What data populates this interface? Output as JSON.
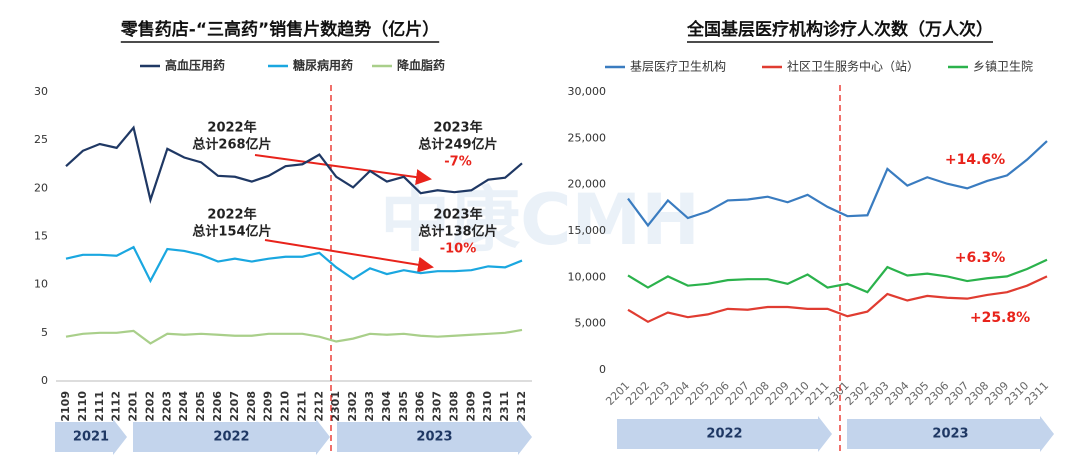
{
  "watermark": "中康CMH",
  "chart_data": [
    {
      "type": "line",
      "title": "零售药店-“三高药”销售片数趋势（亿片）",
      "categories": [
        "2109",
        "2110",
        "2111",
        "2112",
        "2201",
        "2202",
        "2203",
        "2204",
        "2205",
        "2206",
        "2207",
        "2208",
        "2209",
        "2210",
        "2211",
        "2212",
        "2301",
        "2302",
        "2303",
        "2304",
        "2305",
        "2306",
        "2307",
        "2308",
        "2309",
        "2310",
        "2311",
        "2312"
      ],
      "series": [
        {
          "name": "高血压用药",
          "color": "#1f3864",
          "values": [
            22.3,
            23.9,
            24.6,
            24.2,
            26.3,
            18.8,
            24.1,
            23.2,
            22.7,
            21.3,
            21.2,
            20.7,
            21.3,
            22.3,
            22.5,
            23.5,
            21.2,
            20.1,
            21.8,
            20.7,
            21.2,
            19.5,
            19.8,
            19.6,
            19.8,
            20.9,
            21.1,
            22.6
          ]
        },
        {
          "name": "糖尿病用药",
          "color": "#1aa7e0",
          "values": [
            12.7,
            13.1,
            13.1,
            13.0,
            13.9,
            10.4,
            13.7,
            13.5,
            13.1,
            12.4,
            12.7,
            12.4,
            12.7,
            12.9,
            12.9,
            13.3,
            11.8,
            10.6,
            11.7,
            11.1,
            11.5,
            11.2,
            11.4,
            11.4,
            11.5,
            11.9,
            11.8,
            12.5
          ]
        },
        {
          "name": "降血脂药",
          "color": "#a9cf8a",
          "values": [
            4.6,
            4.9,
            5.0,
            5.0,
            5.2,
            3.9,
            4.9,
            4.8,
            4.9,
            4.8,
            4.7,
            4.7,
            4.9,
            4.9,
            4.9,
            4.6,
            4.1,
            4.4,
            4.9,
            4.8,
            4.9,
            4.7,
            4.6,
            4.7,
            4.8,
            4.9,
            5.0,
            5.3
          ]
        }
      ],
      "ylim": [
        0,
        30
      ],
      "yticks": [
        0,
        5,
        10,
        15,
        20,
        25,
        30
      ],
      "annotations": [
        "2022年",
        "总计268亿片",
        "2023年",
        "总计249亿片",
        "-7%",
        "2022年",
        "总计154亿片",
        "2023年",
        "总计138亿片",
        "-10%"
      ],
      "periods": [
        "2021",
        "2022",
        "2023"
      ]
    },
    {
      "type": "line",
      "title": "全国基层医疗机构诊疗人次数（万人次）",
      "categories": [
        "2201",
        "2202",
        "2203",
        "2204",
        "2205",
        "2206",
        "2207",
        "2208",
        "2209",
        "2210",
        "2211",
        "2301",
        "2302",
        "2303",
        "2304",
        "2305",
        "2306",
        "2307",
        "2308",
        "2309",
        "2310",
        "2311"
      ],
      "series": [
        {
          "name": "基层医疗卫生机构",
          "color": "#3a7cc0",
          "values": [
            18500,
            15600,
            18300,
            16400,
            17100,
            18300,
            18400,
            18700,
            18100,
            18900,
            17600,
            16600,
            16700,
            21700,
            19900,
            20800,
            20100,
            19600,
            20400,
            21000,
            22700,
            24700
          ]
        },
        {
          "name": "社区卫生服务中心（站）",
          "color": "#e03c31",
          "values": [
            6500,
            5200,
            6200,
            5700,
            6000,
            6600,
            6500,
            6800,
            6800,
            6600,
            6600,
            5800,
            6300,
            8200,
            7500,
            8000,
            7800,
            7700,
            8100,
            8400,
            9100,
            10100
          ]
        },
        {
          "name": "乡镇卫生院",
          "color": "#2bb24c",
          "values": [
            10200,
            8900,
            10100,
            9100,
            9300,
            9700,
            9800,
            9800,
            9300,
            10300,
            8900,
            9300,
            8400,
            11100,
            10200,
            10400,
            10100,
            9600,
            9900,
            10100,
            10900,
            11900
          ]
        }
      ],
      "ylim": [
        0,
        30000
      ],
      "yticks": [
        0,
        {
          "value": 5000,
          "label": "5,000"
        },
        {
          "value": 10000,
          "label": "10,000"
        },
        {
          "value": 15000,
          "label": "15,000"
        },
        {
          "value": 20000,
          "label": "20,000"
        },
        {
          "value": 25000,
          "label": "25,000"
        },
        {
          "value": 30000,
          "label": "30,000"
        }
      ],
      "annotations": [
        "+14.6%",
        "+6.3%",
        "+25.8%"
      ],
      "periods": [
        "2022",
        "2023"
      ]
    }
  ]
}
